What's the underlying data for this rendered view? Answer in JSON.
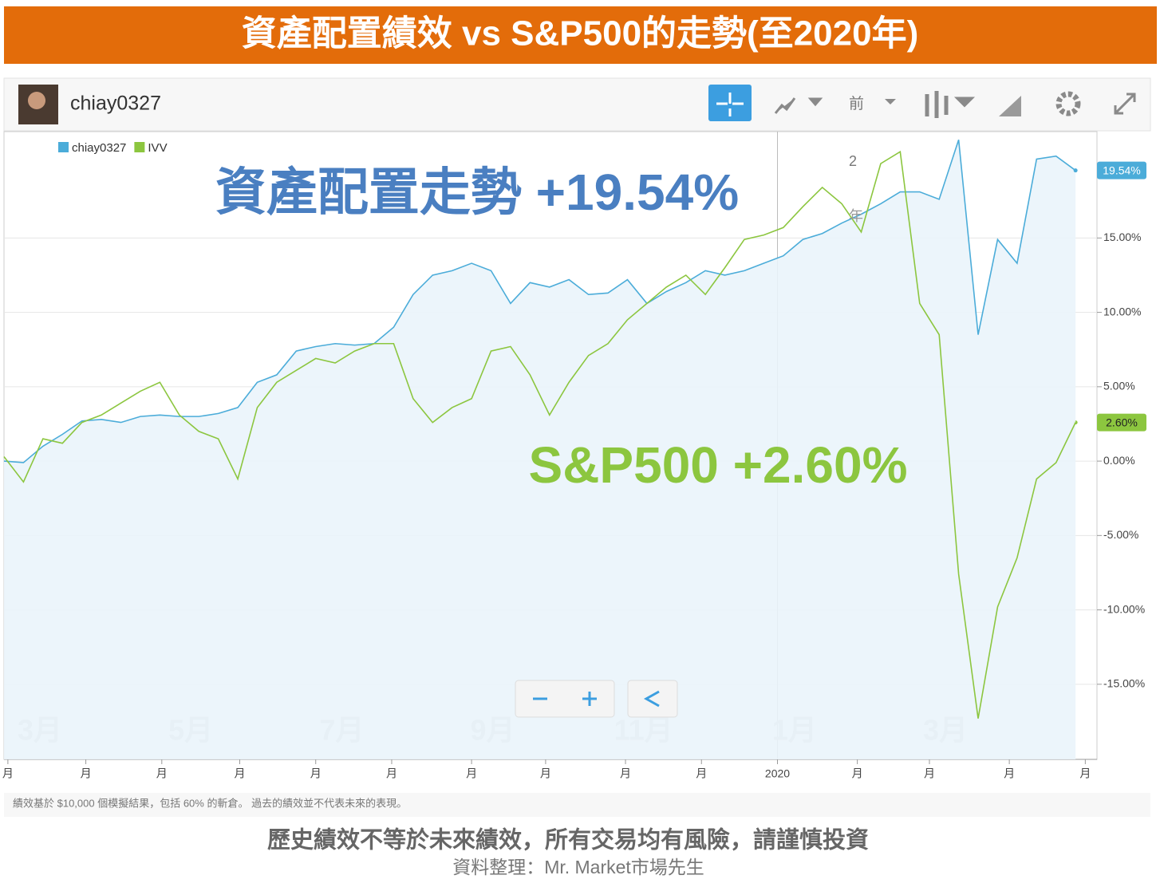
{
  "chart_data": {
    "type": "line",
    "title": "資產配置績效 vs S&P500的走勢(至2020年)",
    "username": "chiay0327",
    "toolbar_period": "前",
    "series": [
      {
        "name": "chiay0327",
        "color": "#4bacd9",
        "values": [
          0,
          -0.1,
          1,
          1.8,
          2.7,
          2.8,
          2.6,
          3,
          3.1,
          3,
          3,
          3.2,
          3.6,
          5.3,
          5.8,
          7.4,
          7.7,
          7.9,
          7.8,
          7.9,
          9,
          11.2,
          12.5,
          12.8,
          13.3,
          12.8,
          10.6,
          12,
          11.7,
          12.2,
          11.2,
          11.3,
          12.2,
          10.6,
          11.4,
          12,
          12.8,
          12.5,
          12.8,
          13.3,
          13.8,
          14.9,
          15.3,
          16,
          16.6,
          17.3,
          18.1,
          18.1,
          17.6,
          21.6,
          8.5,
          14.9,
          13.3,
          20.3,
          20.5,
          19.54
        ],
        "value_labels": [
          null,
          null,
          null,
          null,
          null,
          null,
          null,
          null,
          null,
          null,
          null,
          null,
          null,
          null,
          null,
          null,
          null,
          null,
          null,
          null,
          null,
          null,
          null,
          null,
          null,
          null,
          null,
          null,
          null,
          null,
          null,
          null,
          null,
          null,
          null,
          null,
          null,
          null,
          null,
          null,
          null,
          null,
          null,
          null,
          null,
          null,
          null,
          null,
          null,
          null,
          null,
          null,
          null,
          null,
          null,
          "19.54%"
        ]
      },
      {
        "name": "IVV",
        "color": "#8cc63f",
        "values": [
          0.3,
          -1.4,
          1.5,
          1.2,
          2.6,
          3.1,
          3.9,
          4.7,
          5.3,
          3.1,
          2,
          1.5,
          -1.2,
          3.6,
          5.3,
          6.1,
          6.9,
          6.6,
          7.4,
          7.9,
          7.9,
          4.2,
          2.6,
          3.6,
          4.2,
          7.4,
          7.7,
          5.8,
          3.1,
          5.3,
          7.1,
          7.9,
          9.5,
          10.6,
          11.7,
          12.5,
          11.2,
          13,
          14.9,
          15.2,
          15.7,
          17.1,
          18.4,
          17.3,
          15.4,
          20,
          20.8,
          10.6,
          8.5,
          -7.6,
          -17.3,
          -9.8,
          -6.5,
          -1.2,
          -0.1,
          2.6
        ],
        "value_labels": [
          null,
          null,
          null,
          null,
          null,
          null,
          null,
          null,
          null,
          null,
          null,
          null,
          null,
          null,
          null,
          null,
          null,
          null,
          null,
          null,
          null,
          null,
          null,
          null,
          null,
          null,
          null,
          null,
          null,
          null,
          null,
          null,
          null,
          null,
          null,
          null,
          null,
          null,
          null,
          null,
          null,
          null,
          null,
          null,
          null,
          null,
          null,
          null,
          null,
          null,
          null,
          null,
          null,
          null,
          null,
          "2.60%"
        ]
      }
    ],
    "xlim": [
      0,
      56.1
    ],
    "xticks": [
      {
        "value": 0.2,
        "label": "月"
      },
      {
        "value": 4.2,
        "label": "月"
      },
      {
        "value": 8.1,
        "label": "月"
      },
      {
        "value": 12.1,
        "label": "月"
      },
      {
        "value": 16,
        "label": "月"
      },
      {
        "value": 19.9,
        "label": "月"
      },
      {
        "value": 24,
        "label": "月"
      },
      {
        "value": 27.8,
        "label": "月"
      },
      {
        "value": 31.9,
        "label": "月"
      },
      {
        "value": 35.8,
        "label": "月"
      },
      {
        "value": 39.7,
        "label": "2020"
      },
      {
        "value": 43.8,
        "label": "月"
      },
      {
        "value": 47.5,
        "label": "月"
      },
      {
        "value": 51.6,
        "label": "月"
      },
      {
        "value": 55.5,
        "label": "月"
      }
    ],
    "ylim": [
      -20.05,
      22.15
    ],
    "yticks": [
      {
        "value": -15,
        "label": "-15.00%"
      },
      {
        "value": -10,
        "label": "-10.00%"
      },
      {
        "value": -5,
        "label": "-5.00%"
      },
      {
        "value": 0,
        "label": "0.00%"
      },
      {
        "value": 5,
        "label": "5.00%"
      },
      {
        "value": 10,
        "label": "10.00%"
      },
      {
        "value": 15,
        "label": "15.00%"
      }
    ],
    "grid": true,
    "legend": "upper left",
    "month_watermarks": [
      "3月",
      "5月",
      "7月",
      "9月",
      "11月",
      "1月",
      "3月"
    ],
    "overlay_fragments": [
      "2",
      "年"
    ],
    "annotations": [
      "資產配置走勢 +19.54%",
      "S&P500 +2.60%"
    ],
    "footnote": "績效基於 $10,000 個模擬結果，包括 60% 的斬倉。 過去的績效並不代表未來的表現。",
    "disclaimer": "歷史績效不等於未來績效，所有交易均有風險，請謹慎投資",
    "source": "資料整理：Mr. Market市場先生"
  }
}
